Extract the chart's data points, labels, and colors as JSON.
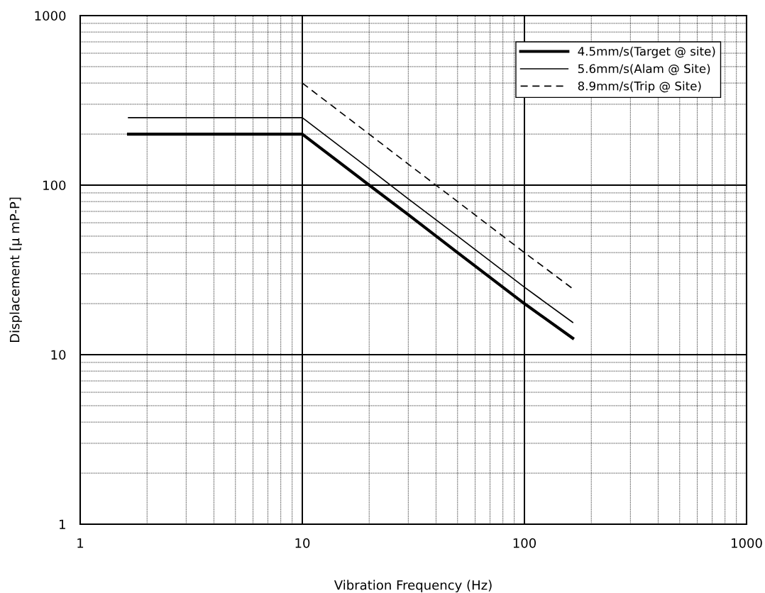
{
  "chart_data": {
    "type": "line",
    "xlabel": "Vibration Frequency (Hz)",
    "ylabel": "Displacement [μ mP-P]",
    "log": "xy",
    "grid": true,
    "legend": "top right",
    "xlim": [
      1,
      1000
    ],
    "ylim": [
      1,
      1000
    ],
    "xticks": [
      1,
      10,
      100,
      1000
    ],
    "yticks": [
      1,
      10,
      100,
      1000
    ],
    "series": [
      {
        "name": "4.5mm/s(Target @ site)",
        "color": "#000000",
        "line_style": "solid",
        "x": [
          1.65,
          10,
          20,
          30,
          50,
          100,
          165
        ],
        "values": [
          200,
          200,
          100,
          67,
          40,
          20,
          12.5
        ]
      },
      {
        "name": "5.6mm/s(Alam @ Site)",
        "color": "#000000",
        "line_style": "solid",
        "x": [
          1.65,
          10,
          20,
          30,
          50,
          100,
          165
        ],
        "values": [
          250,
          250,
          125,
          83,
          50,
          25,
          15.5
        ]
      },
      {
        "name": "8.9mm/s(Trip @ Site)",
        "color": "#000000",
        "line_style": "dashed",
        "x": [
          10,
          20,
          30,
          50,
          100,
          165
        ],
        "values": [
          400,
          200,
          133,
          80,
          40,
          24.5
        ]
      }
    ]
  }
}
